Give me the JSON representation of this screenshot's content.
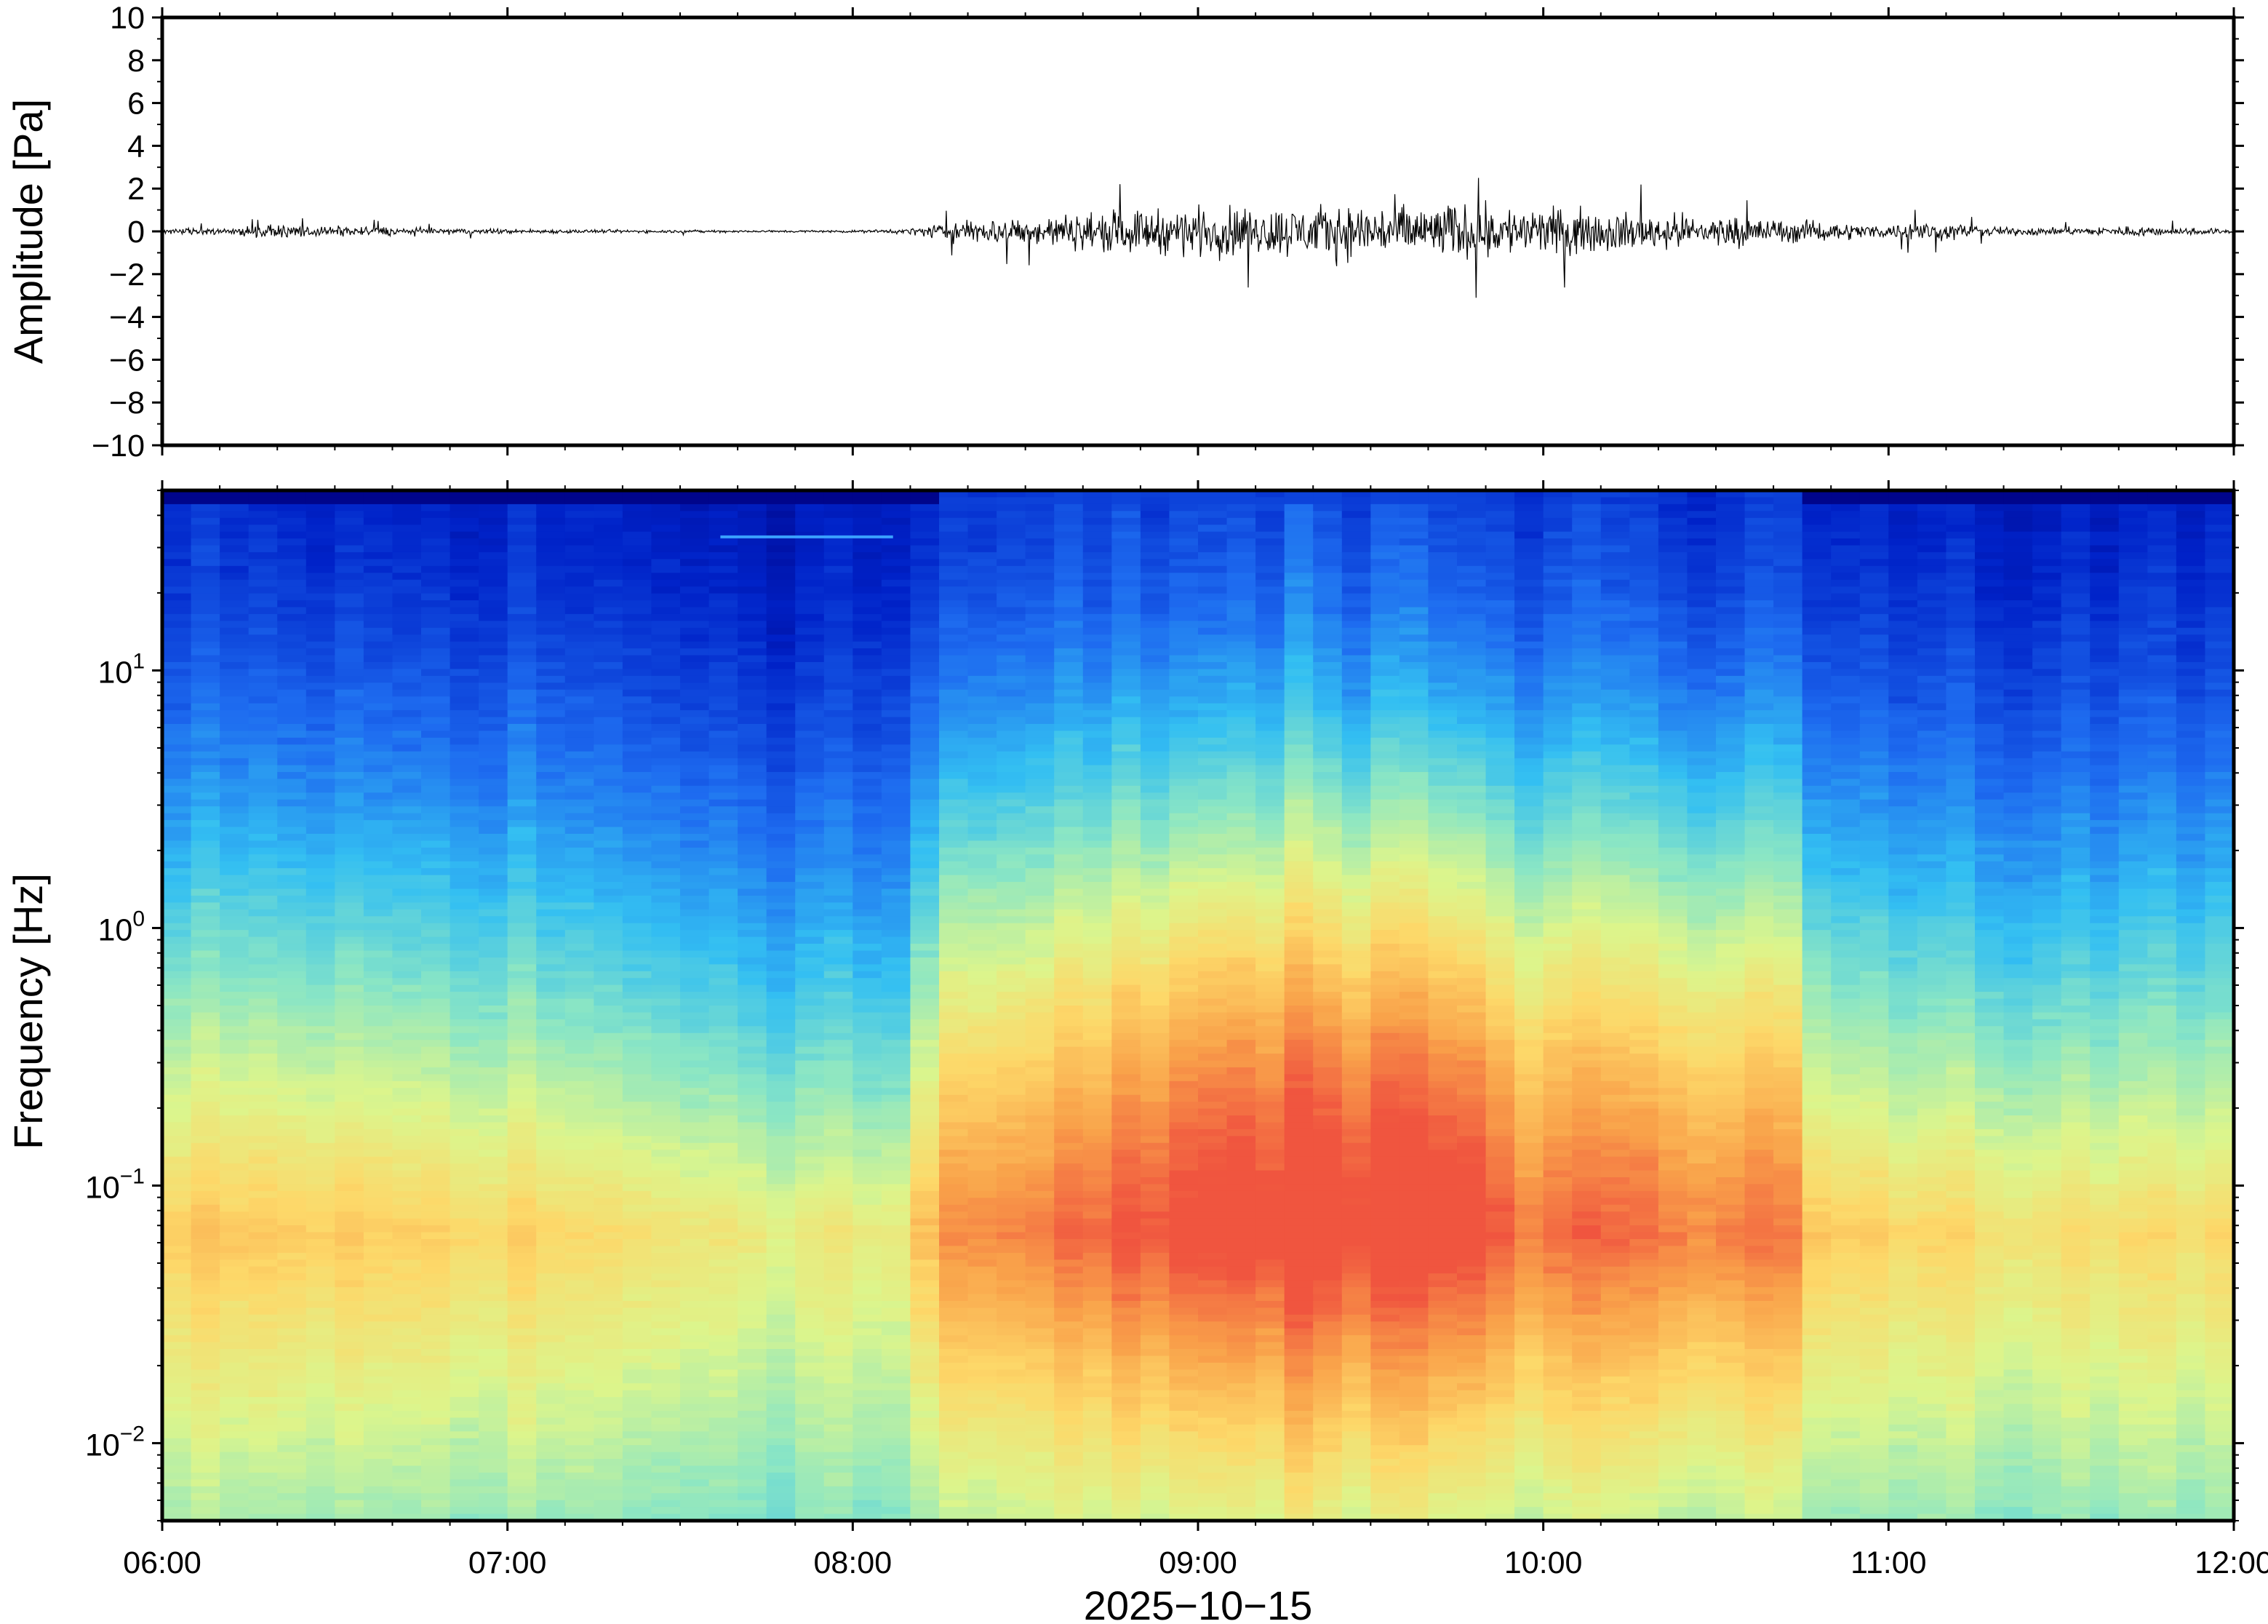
{
  "chart_data": [
    {
      "type": "line",
      "panel": "waveform",
      "ylabel": "Amplitude [Pa]",
      "ylim": [
        -10,
        10
      ],
      "yticks": [
        10,
        8,
        6,
        4,
        2,
        0,
        -2,
        -4,
        -6,
        -8,
        -10
      ],
      "ytick_labels": [
        "10",
        "8",
        "6",
        "4",
        "2",
        "0",
        "−2",
        "−4",
        "−6",
        "−8",
        "−10"
      ],
      "x_range": [
        "06:00",
        "12:00"
      ],
      "envelope_hours": [
        6.0,
        6.3,
        6.5,
        6.75,
        7.0,
        7.25,
        7.5,
        7.75,
        8.0,
        8.15,
        8.3,
        8.5,
        8.75,
        9.0,
        9.25,
        9.5,
        9.75,
        10.0,
        10.25,
        10.5,
        10.75,
        11.0,
        11.1,
        11.3,
        11.5,
        11.7,
        12.0
      ],
      "envelope_pa": [
        0.2,
        0.45,
        0.45,
        0.3,
        0.2,
        0.15,
        0.12,
        0.1,
        0.1,
        0.2,
        0.9,
        1.2,
        1.7,
        2.0,
        2.1,
        2.3,
        2.3,
        2.0,
        1.6,
        1.3,
        0.9,
        0.5,
        0.9,
        0.4,
        0.3,
        0.45,
        0.2
      ],
      "peak_max_pa": 2.5,
      "peak_min_pa": -3.3
    },
    {
      "type": "heatmap",
      "panel": "spectrogram",
      "ylabel": "Frequency [Hz]",
      "y_scale": "log",
      "ylim_hz": [
        0.005,
        50
      ],
      "yticks_hz": [
        10,
        1,
        0.1,
        0.01
      ],
      "ytick_labels": [
        {
          "base": "10",
          "exp": "1"
        },
        {
          "base": "10",
          "exp": "0"
        },
        {
          "base": "10",
          "exp": "−1"
        },
        {
          "base": "10",
          "exp": "−2"
        }
      ],
      "xlabel": "2025−10−15",
      "x_ticks": [
        "06:00",
        "07:00",
        "08:00",
        "09:00",
        "10:00",
        "11:00",
        "12:00"
      ],
      "colormap": "jet",
      "colormap_stops": [
        "#00007f",
        "#0022c8",
        "#1e6cf0",
        "#33bff2",
        "#8be6c4",
        "#dcf58c",
        "#fdd869",
        "#f9a24a",
        "#f0553f"
      ],
      "activity_hours": [
        6.0,
        6.5,
        7.0,
        7.5,
        8.0,
        8.15,
        8.25,
        8.55,
        9.0,
        9.5,
        9.85,
        9.9,
        10.25,
        10.75,
        10.8,
        11.0,
        11.5,
        12.0
      ],
      "activity_level": [
        0.08,
        0.12,
        0.04,
        -0.08,
        -0.18,
        -0.2,
        0.5,
        0.55,
        0.95,
        1.0,
        0.95,
        0.65,
        0.7,
        0.6,
        0.1,
        0.05,
        -0.05,
        0.0
      ],
      "narrowband_line": {
        "start": "07:37",
        "end": "08:07",
        "frequency_hz": 33
      }
    }
  ]
}
